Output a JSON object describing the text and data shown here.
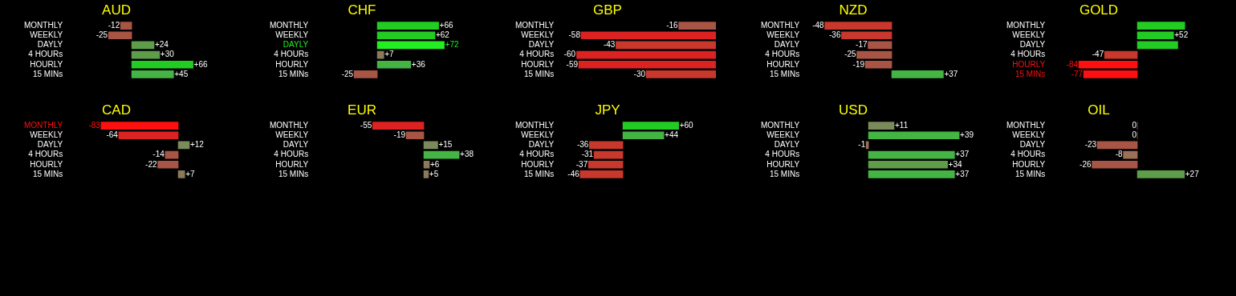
{
  "chart_data": [
    {
      "type": "bar",
      "orientation": "horizontal",
      "title": "AUD",
      "categories": [
        "MONTHLY",
        "WEEKLY",
        "DAYLY",
        "4 HOURs",
        "HOURLY",
        "15 MINs"
      ],
      "values": [
        -12,
        -25,
        24,
        30,
        66,
        45
      ],
      "colors": [
        "#a85545",
        "#a85545",
        "#5e9e4a",
        "#5e9e4a",
        "#22cc22",
        "#44b444"
      ],
      "value_labels": [
        "-12",
        "-25",
        "+24",
        "+30",
        "+66",
        "+45"
      ],
      "tick_labels": "y"
    },
    {
      "type": "bar",
      "orientation": "horizontal",
      "title": "CHF",
      "categories": [
        "MONTHLY",
        "WEEKLY",
        "DAYLY",
        "4 HOURs",
        "HOURLY",
        "15 MINs"
      ],
      "values": [
        66,
        62,
        72,
        7,
        36,
        -25
      ],
      "colors": [
        "#22cc22",
        "#22cc22",
        "#22ee22",
        "#8a7a5a",
        "#44b444",
        "#a85545"
      ],
      "value_labels": [
        "+66",
        "+62",
        "+72",
        "+7",
        "+36",
        "-25"
      ],
      "tick_labels": "y"
    },
    {
      "type": "bar",
      "orientation": "horizontal",
      "title": "GBP",
      "categories": [
        "MONTHLY",
        "WEEKLY",
        "DAYLY",
        "4 HOURs",
        "HOURLY",
        "15 MINs"
      ],
      "values": [
        -16,
        -58,
        -43,
        -60,
        -59,
        -30
      ],
      "colors": [
        "#a85545",
        "#dd2222",
        "#c8382c",
        "#dd2222",
        "#dd2222",
        "#c8382c"
      ],
      "value_labels": [
        "-16",
        "-58",
        "-43",
        "-60",
        "-59",
        "-30"
      ],
      "tick_labels": "y"
    },
    {
      "type": "bar",
      "orientation": "horizontal",
      "title": "NZD",
      "categories": [
        "MONTHLY",
        "WEEKLY",
        "DAYLY",
        "4 HOURs",
        "HOURLY",
        "15 MINs"
      ],
      "values": [
        -48,
        -36,
        -17,
        -25,
        -19,
        37
      ],
      "colors": [
        "#c8382c",
        "#c8382c",
        "#a85545",
        "#a85545",
        "#a85545",
        "#44b444"
      ],
      "value_labels": [
        "-48",
        "-36",
        "-17",
        "-25",
        "-19",
        "+37"
      ],
      "tick_labels": "y"
    },
    {
      "type": "bar",
      "orientation": "horizontal",
      "title": "GOLD",
      "categories": [
        "MONTHLY",
        "WEEKLY",
        "DAYLY",
        "4 HOURs",
        "HOURLY",
        "15 MINs"
      ],
      "values": [
        68,
        52,
        58,
        -47,
        -84,
        -77
      ],
      "colors": [
        "#22cc22",
        "#22cc22",
        "#22cc22",
        "#c8382c",
        "#ff1010",
        "#ff1010"
      ],
      "value_labels": [
        null,
        "+52",
        null,
        "-47",
        "-84",
        "-77"
      ],
      "tick_labels": "y"
    },
    {
      "type": "bar",
      "orientation": "horizontal",
      "title": "CAD",
      "categories": [
        "MONTHLY",
        "WEEKLY",
        "DAYLY",
        "4 HOURs",
        "HOURLY",
        "15 MINs"
      ],
      "values": [
        -83,
        -64,
        12,
        -14,
        -22,
        7
      ],
      "colors": [
        "#ff1010",
        "#dd2222",
        "#7a8a5a",
        "#a85545",
        "#a85545",
        "#8a7a5a"
      ],
      "value_labels": [
        "-83",
        "-64",
        "+12",
        "-14",
        "-22",
        "+7"
      ],
      "tick_labels": "y"
    },
    {
      "type": "bar",
      "orientation": "horizontal",
      "title": "EUR",
      "categories": [
        "MONTHLY",
        "WEEKLY",
        "DAYLY",
        "4 HOURs",
        "HOURLY",
        "15 MINs"
      ],
      "values": [
        -55,
        -19,
        15,
        38,
        6,
        5
      ],
      "colors": [
        "#dd2222",
        "#a85545",
        "#7a8a5a",
        "#44b444",
        "#8a7a5a",
        "#8a7a5a"
      ],
      "value_labels": [
        "-55",
        "-19",
        "+15",
        "+38",
        "+6",
        "+5"
      ],
      "tick_labels": "y"
    },
    {
      "type": "bar",
      "orientation": "horizontal",
      "title": "JPY",
      "categories": [
        "MONTHLY",
        "WEEKLY",
        "DAYLY",
        "4 HOURs",
        "HOURLY",
        "15 MINs"
      ],
      "values": [
        60,
        44,
        -36,
        -31,
        -37,
        -46
      ],
      "colors": [
        "#22cc22",
        "#44b444",
        "#c8382c",
        "#c8382c",
        "#c8382c",
        "#c8382c"
      ],
      "value_labels": [
        "+60",
        "+44",
        "-36",
        "-31",
        "-37",
        "-46"
      ],
      "tick_labels": "y"
    },
    {
      "type": "bar",
      "orientation": "horizontal",
      "title": "USD",
      "categories": [
        "MONTHLY",
        "WEEKLY",
        "DAYLY",
        "4 HOURs",
        "HOURLY",
        "15 MINs"
      ],
      "values": [
        11,
        39,
        -1,
        37,
        34,
        37
      ],
      "colors": [
        "#7a8a5a",
        "#44b444",
        "#9a7058",
        "#44b444",
        "#5e9e4a",
        "#44b444"
      ],
      "value_labels": [
        "+11",
        "+39",
        "-1",
        "+37",
        "+34",
        "+37"
      ],
      "tick_labels": "y"
    },
    {
      "type": "bar",
      "orientation": "horizontal",
      "title": "OIL",
      "categories": [
        "MONTHLY",
        "WEEKLY",
        "DAYLY",
        "4 HOURs",
        "HOURLY",
        "15 MINs"
      ],
      "values": [
        0,
        0,
        -23,
        -8,
        -26,
        27
      ],
      "colors": [
        "#8a7a5a",
        "#8a7a5a",
        "#a85545",
        "#9a7058",
        "#a85545",
        "#5e9e4a"
      ],
      "value_labels": [
        "0",
        "0",
        "-23",
        "-8",
        "-26",
        "+27"
      ],
      "tick_labels": "y"
    }
  ]
}
